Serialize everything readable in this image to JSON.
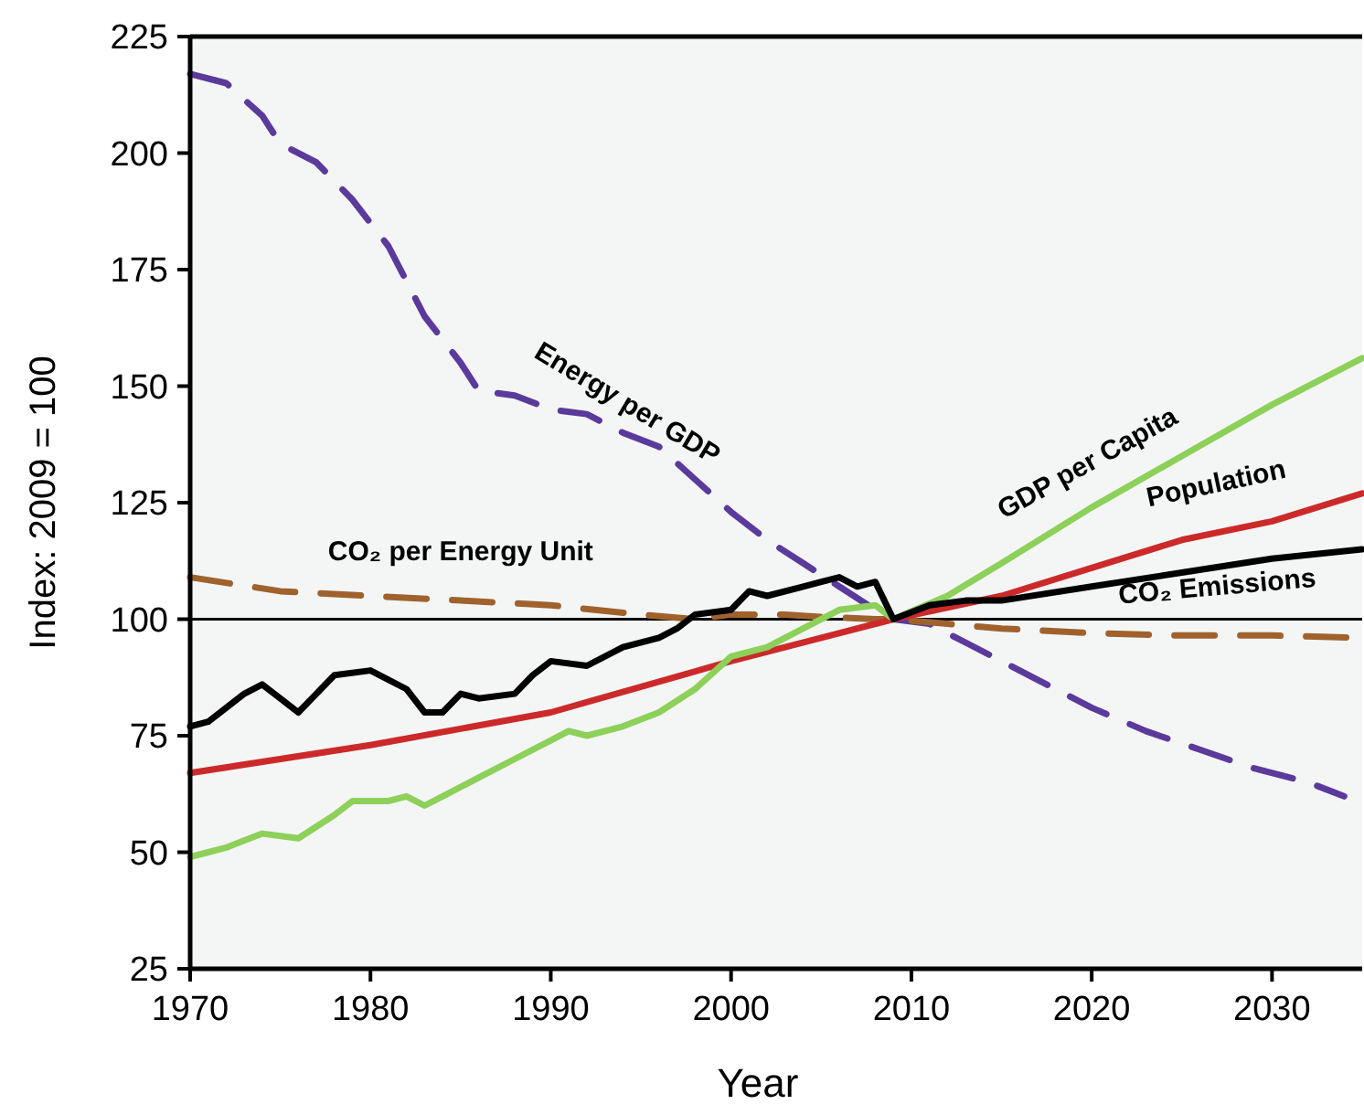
{
  "chart_data": {
    "type": "line",
    "xlabel": "Year",
    "ylabel": "Index: 2009 = 100",
    "xlim": [
      1970,
      2035
    ],
    "xticks": [
      1970,
      1980,
      1990,
      2000,
      2010,
      2020,
      2030
    ],
    "ylim": [
      25,
      225
    ],
    "yticks": [
      25,
      50,
      75,
      100,
      125,
      150,
      175,
      200,
      225
    ],
    "grid": false,
    "legend": false,
    "marker": "none",
    "ref_lines": [
      {
        "axis": "y",
        "value": 100,
        "color": "#000000",
        "line_style": "solid"
      }
    ],
    "series": [
      {
        "name": "Energy per GDP",
        "color": "#5b3a9b",
        "line_style": "dashed",
        "x": [
          1970,
          1972,
          1974,
          1975,
          1977,
          1979,
          1981,
          1983,
          1985,
          1986,
          1988,
          1990,
          1992,
          1994,
          1996,
          1998,
          2000,
          2002,
          2004,
          2006,
          2008,
          2009,
          2011,
          2013,
          2015,
          2018,
          2020,
          2023,
          2026,
          2029,
          2032,
          2034
        ],
        "values": [
          217,
          215,
          208,
          202,
          198,
          190,
          180,
          165,
          155,
          149,
          148,
          145,
          144,
          140,
          137,
          130,
          123,
          117,
          112,
          107,
          102,
          100,
          99,
          95,
          91,
          85,
          81,
          76,
          72,
          68,
          65,
          62
        ]
      },
      {
        "name": "CO₂ per Energy Unit",
        "color": "#a0622d",
        "line_style": "dashed",
        "x": [
          1970,
          1975,
          1980,
          1985,
          1990,
          1995,
          1998,
          2000,
          2003,
          2005,
          2008,
          2009,
          2012,
          2015,
          2020,
          2025,
          2030,
          2035
        ],
        "values": [
          109,
          106,
          105,
          104,
          103,
          101,
          100,
          101,
          101,
          100.5,
          100,
          100,
          99,
          98,
          97,
          96.5,
          96.5,
          96
        ]
      },
      {
        "name": "Population",
        "color": "#cc2a2a",
        "line_style": "solid",
        "x": [
          1970,
          1980,
          1990,
          2000,
          2005,
          2009,
          2015,
          2020,
          2025,
          2030,
          2035
        ],
        "values": [
          67,
          73,
          80,
          91,
          96,
          100,
          105,
          111,
          117,
          121,
          127
        ]
      },
      {
        "name": "GDP per Capita",
        "color": "#8dd05a",
        "line_style": "solid",
        "x": [
          1970,
          1971,
          1972,
          1974,
          1976,
          1978,
          1979,
          1980,
          1981,
          1982,
          1983,
          1984,
          1986,
          1988,
          1990,
          1991,
          1992,
          1994,
          1996,
          1998,
          2000,
          2002,
          2004,
          2006,
          2008,
          2009,
          2012,
          2015,
          2020,
          2025,
          2030,
          2035
        ],
        "values": [
          49,
          50,
          51,
          54,
          53,
          58,
          61,
          61,
          61,
          62,
          60,
          62,
          66,
          70,
          74,
          76,
          75,
          77,
          80,
          85,
          92,
          94,
          98,
          102,
          103,
          100,
          105,
          112,
          124,
          135,
          146,
          156
        ]
      },
      {
        "name": "CO₂ Emissions",
        "color": "#000000",
        "line_style": "solid",
        "x": [
          1970,
          1971,
          1973,
          1974,
          1976,
          1978,
          1980,
          1982,
          1983,
          1984,
          1985,
          1986,
          1988,
          1989,
          1990,
          1992,
          1994,
          1996,
          1997,
          1998,
          2000,
          2001,
          2002,
          2004,
          2005,
          2006,
          2007,
          2008,
          2009,
          2011,
          2013,
          2015,
          2020,
          2025,
          2030,
          2035
        ],
        "values": [
          77,
          78,
          84,
          86,
          80,
          88,
          89,
          85,
          80,
          80,
          84,
          83,
          84,
          88,
          91,
          90,
          94,
          96,
          98,
          101,
          102,
          106,
          105,
          107,
          108,
          109,
          107,
          108,
          100,
          103,
          104,
          104,
          107,
          110,
          113,
          115
        ]
      }
    ]
  }
}
